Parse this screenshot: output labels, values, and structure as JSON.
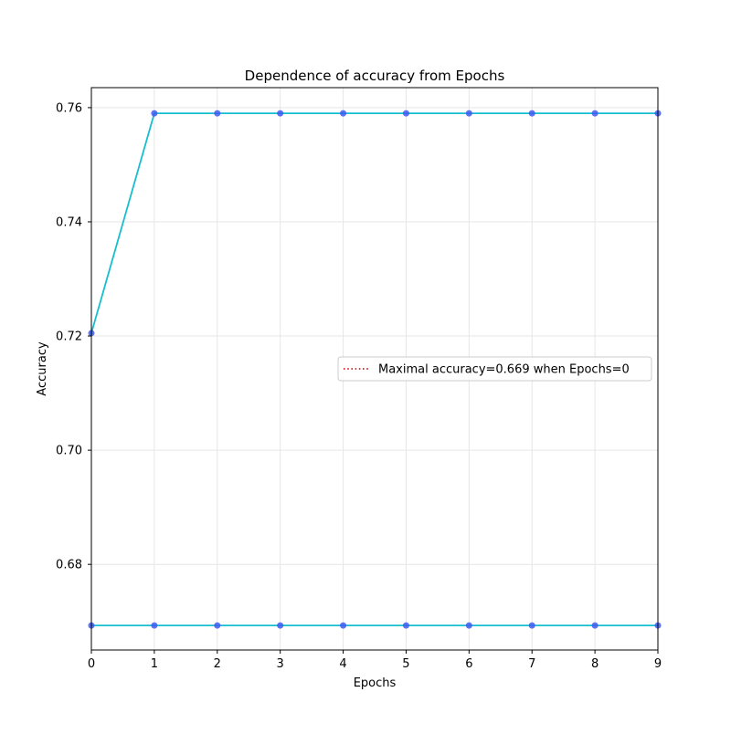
{
  "chart_data": {
    "type": "line",
    "title": "Dependence of accuracy from Epochs",
    "xlabel": "Epochs",
    "ylabel": "Accuracy",
    "xlim": [
      0,
      9
    ],
    "ylim": [
      0.665,
      0.7635
    ],
    "xticks": [
      0,
      1,
      2,
      3,
      4,
      5,
      6,
      7,
      8,
      9
    ],
    "yticks": [
      0.68,
      0.7,
      0.72,
      0.74,
      0.76
    ],
    "grid": true,
    "legend": {
      "location": "center-right",
      "entries": [
        {
          "label": "Maximal accuracy=0.669 when Epochs=0",
          "style": "dotted",
          "color": "#cc0000"
        }
      ]
    },
    "series": [
      {
        "x": [
          0,
          1,
          2,
          3,
          4,
          5,
          6,
          7,
          8,
          9
        ],
        "values": [
          0.7205,
          0.759,
          0.759,
          0.759,
          0.759,
          0.759,
          0.759,
          0.759,
          0.759,
          0.759
        ],
        "line_color": "#17becf",
        "marker_color": "#3f5bf0"
      },
      {
        "x": [
          0,
          1,
          2,
          3,
          4,
          5,
          6,
          7,
          8,
          9
        ],
        "values": [
          0.6693,
          0.6693,
          0.6693,
          0.6693,
          0.6693,
          0.6693,
          0.6693,
          0.6693,
          0.6693,
          0.6693
        ],
        "line_color": "#17becf",
        "marker_color": "#3f5bf0"
      }
    ]
  }
}
